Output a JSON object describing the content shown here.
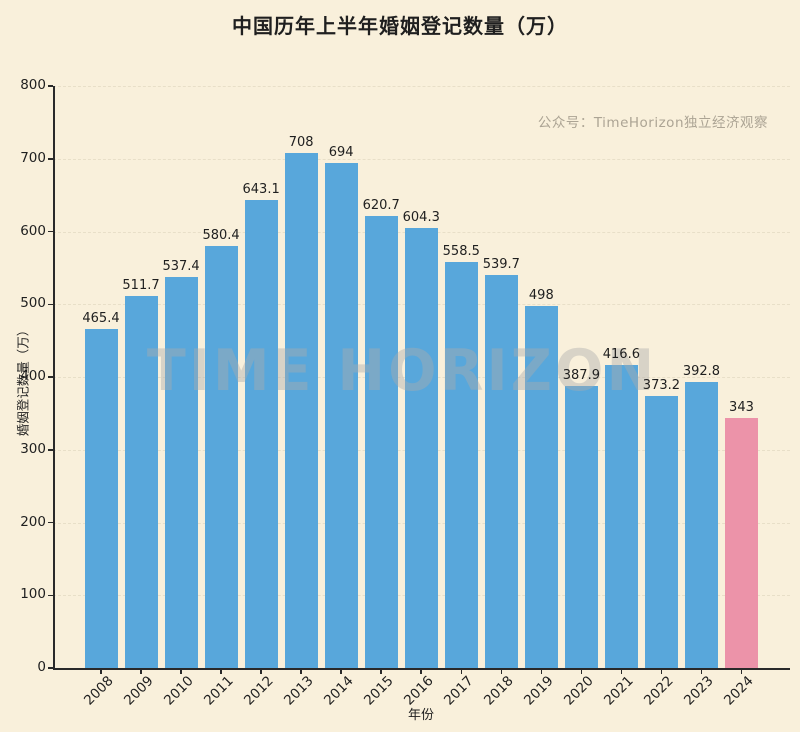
{
  "page": {
    "background_color": "#F9F0DB"
  },
  "chart_data": {
    "type": "bar",
    "title": "中国历年上半年婚姻登记数量（万）",
    "annotation": "公众号：TimeHorizon独立经济观察",
    "watermark": "TIME HORIZON",
    "xlabel": "年份",
    "ylabel": "婚姻登记数量（万）",
    "categories": [
      "2008",
      "2009",
      "2010",
      "2011",
      "2012",
      "2013",
      "2014",
      "2015",
      "2016",
      "2017",
      "2018",
      "2019",
      "2020",
      "2021",
      "2022",
      "2023",
      "2024"
    ],
    "values": [
      465.4,
      511.7,
      537.4,
      580.4,
      643.1,
      708,
      694,
      620.7,
      604.3,
      558.5,
      539.7,
      498,
      387.9,
      416.6,
      373.2,
      392.8,
      343
    ],
    "ylim": [
      0,
      800
    ],
    "ytick_step": 100,
    "grid": "horizontal-dashed",
    "legend": "none",
    "colors": {
      "bar_default": "#58A7DB",
      "bar_highlight": "#EC93A9",
      "highlight_index": 16,
      "grid_color": "#E8DFC8",
      "text_color": "#1F1F1F",
      "annotation_color": "#ACA494"
    }
  }
}
